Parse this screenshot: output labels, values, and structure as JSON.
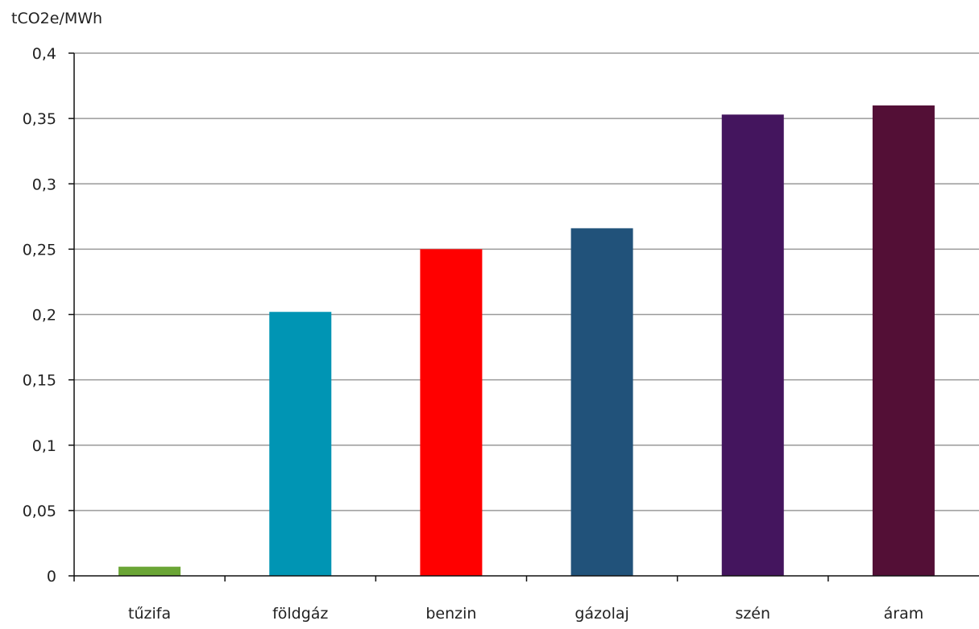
{
  "chart_data": {
    "type": "bar",
    "ylabel": "tCO2e/MWh",
    "categories": [
      "tűzifa",
      "földgáz",
      "benzin",
      "gázolaj",
      "szén",
      "áram"
    ],
    "values": [
      0.007,
      0.202,
      0.25,
      0.266,
      0.353,
      0.36
    ],
    "colors": [
      "#6aa535",
      "#0095b4",
      "#ff0000",
      "#21527a",
      "#44155e",
      "#530f36"
    ],
    "ylim": [
      0,
      0.4
    ],
    "yticks": [
      0,
      0.05,
      0.1,
      0.15,
      0.2,
      0.25,
      0.3,
      0.35,
      0.4
    ],
    "ytick_labels": [
      "0",
      "0,05",
      "0,1",
      "0,15",
      "0,2",
      "0,25",
      "0,3",
      "0,35",
      "0,4"
    ],
    "grid": true,
    "legend": "none"
  }
}
